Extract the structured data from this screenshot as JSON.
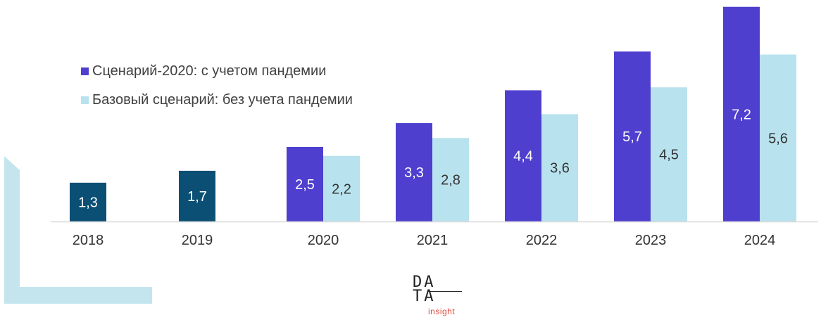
{
  "chart_data": {
    "type": "bar",
    "categories": [
      "2018",
      "2019",
      "2020",
      "2021",
      "2022",
      "2023",
      "2024"
    ],
    "series": [
      {
        "name": "Сценарий-2020: с учетом пандемии",
        "color": "#4f3fcf",
        "values": [
          null,
          null,
          2.5,
          3.3,
          4.4,
          5.7,
          7.2
        ],
        "labels": [
          "",
          "",
          "2,5",
          "3,3",
          "4,4",
          "5,7",
          "7,2"
        ]
      },
      {
        "name": "Базовый сценарий: без учета пандемии",
        "color": "#b8e2ee",
        "values": [
          null,
          null,
          2.2,
          2.8,
          3.6,
          4.5,
          5.6
        ],
        "labels": [
          "",
          "",
          "2,2",
          "2,8",
          "3,6",
          "4,5",
          "5,6"
        ]
      },
      {
        "name": "",
        "color": "#0b4f74",
        "values": [
          1.3,
          1.7,
          null,
          null,
          null,
          null,
          null
        ],
        "labels": [
          "1,3",
          "1,7",
          "",
          "",
          "",
          "",
          ""
        ]
      }
    ],
    "legend_position": "top-left",
    "grid": false
  },
  "logo": {
    "row1": "DA",
    "row2": "TA",
    "sub": "insight"
  },
  "decoration_color": "#c5e5ee"
}
